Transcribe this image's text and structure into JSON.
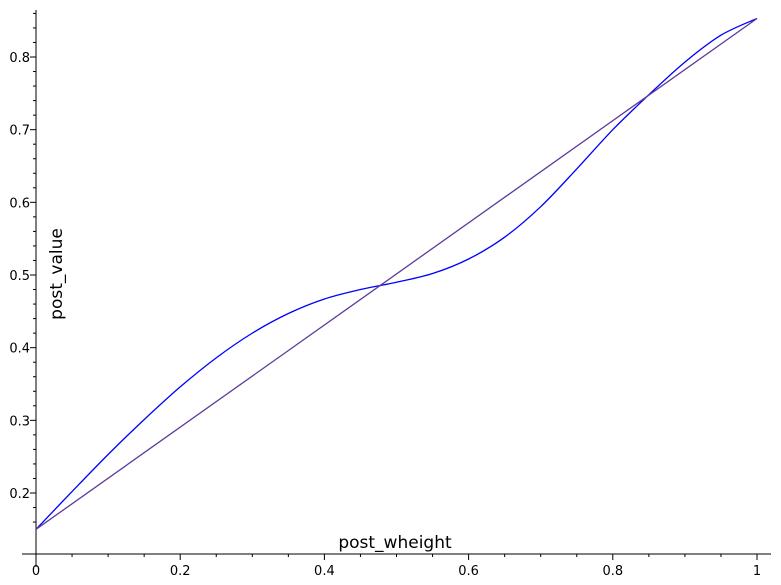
{
  "chart_data": {
    "type": "line",
    "title": "",
    "xlabel": "post_wheight",
    "ylabel": "post_value",
    "xlim": [
      0,
      1
    ],
    "ylim": [
      0.15,
      0.85
    ],
    "x_ticks": [
      0,
      0.2,
      0.4,
      0.6,
      0.8,
      1
    ],
    "x_tick_labels": [
      "0",
      "0.2",
      "0.4",
      "0.6",
      "0.8",
      "1"
    ],
    "y_ticks": [
      0.2,
      0.3,
      0.4,
      0.5,
      0.6,
      0.7,
      0.8
    ],
    "y_tick_labels": [
      "0.2",
      "0.3",
      "0.4",
      "0.5",
      "0.6",
      "0.7",
      "0.8"
    ],
    "grid": false,
    "legend": "none",
    "series": [
      {
        "color": "#0000ff",
        "x": [
          0,
          0.05,
          0.1,
          0.15,
          0.2,
          0.25,
          0.3,
          0.35,
          0.4,
          0.45,
          0.5,
          0.55,
          0.6,
          0.65,
          0.7,
          0.75,
          0.8,
          0.85,
          0.9,
          0.95,
          1
        ],
        "y": [
          0.15,
          0.202,
          0.253,
          0.301,
          0.346,
          0.386,
          0.42,
          0.447,
          0.467,
          0.48,
          0.49,
          0.502,
          0.522,
          0.552,
          0.594,
          0.646,
          0.7,
          0.748,
          0.793,
          0.83,
          0.853
        ]
      },
      {
        "color": "#5d3b9a",
        "x": [
          0,
          1
        ],
        "y": [
          0.15,
          0.853
        ]
      }
    ]
  }
}
